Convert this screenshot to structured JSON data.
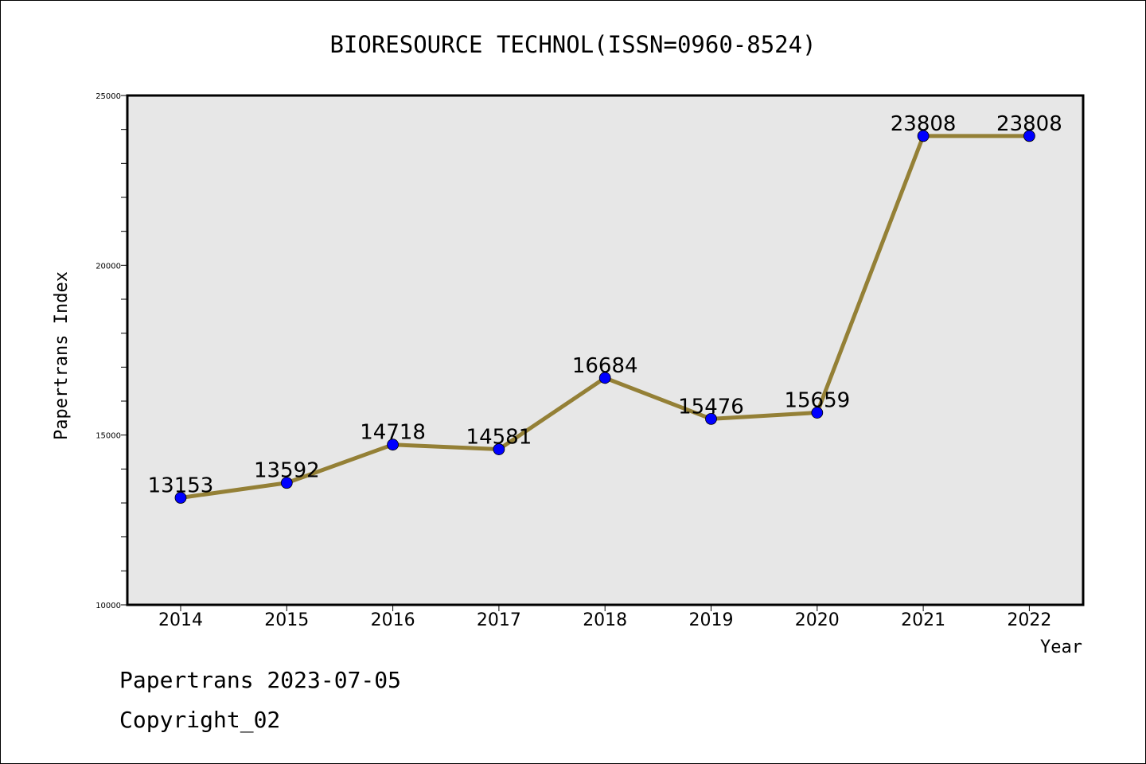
{
  "chart_data": {
    "type": "line",
    "title": "BIORESOURCE TECHNOL(ISSN=0960-8524)",
    "xlabel": "Year",
    "ylabel": "Papertrans Index",
    "categories": [
      "2014",
      "2015",
      "2016",
      "2017",
      "2018",
      "2019",
      "2020",
      "2021",
      "2022"
    ],
    "series": [
      {
        "values": [
          13153,
          13592,
          14718,
          14581,
          16684,
          15476,
          15659,
          23808,
          23808
        ]
      }
    ],
    "data_labels": [
      "13153",
      "13592",
      "14718",
      "14581",
      "16684",
      "15476",
      "15659",
      "23808",
      "23808"
    ],
    "ylim": [
      10000,
      25000
    ],
    "y_tick_labels": [
      "10000",
      "15000",
      "20000",
      "25000"
    ],
    "grid": false,
    "plot_background": "#e7e7e7",
    "line_color": "#948036",
    "marker_color": "#0000ff"
  },
  "footer": {
    "line1": "Papertrans 2023-07-05",
    "line2": "Copyright_02"
  }
}
